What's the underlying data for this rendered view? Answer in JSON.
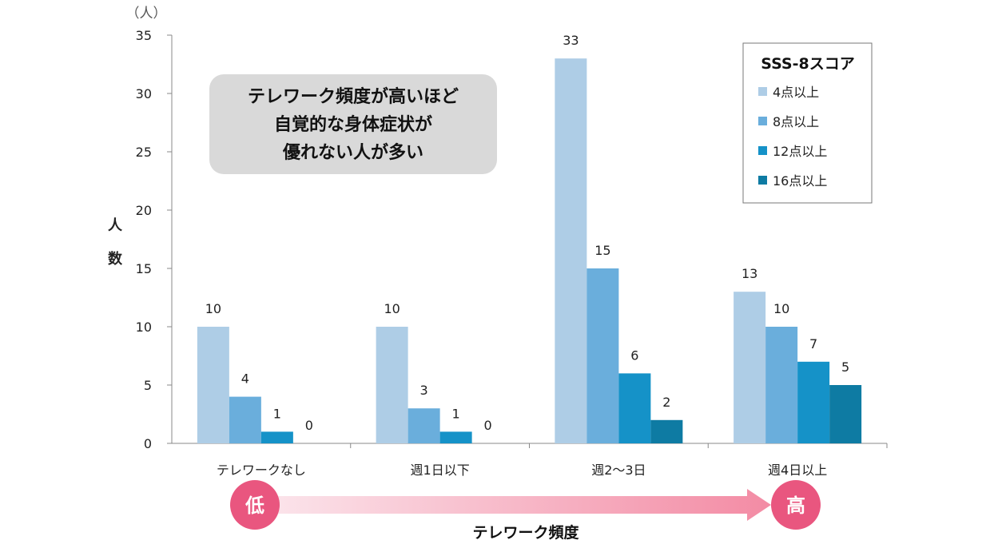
{
  "chart_data": {
    "type": "bar",
    "title": "",
    "categories": [
      "テレワークなし",
      "週1日以下",
      "週2～3日",
      "週4日以上"
    ],
    "series": [
      {
        "name": "4点以上",
        "values": [
          10,
          10,
          33,
          13
        ],
        "color": "#aecde6"
      },
      {
        "name": "8点以上",
        "values": [
          4,
          3,
          15,
          10
        ],
        "color": "#6aaedc"
      },
      {
        "name": "12点以上",
        "values": [
          1,
          1,
          6,
          7
        ],
        "color": "#1592c8"
      },
      {
        "name": "16点以上",
        "values": [
          0,
          0,
          2,
          5
        ],
        "color": "#0e7ba3"
      }
    ],
    "ylim": [
      0,
      35
    ],
    "yticks": [
      0,
      5,
      10,
      15,
      20,
      25,
      30,
      35
    ],
    "yunit": "（人）",
    "ylabel": "人数",
    "xlabel": "テレワーク頻度",
    "legend_title": "SSS-8スコア",
    "legend_position": "top-right",
    "grid": false,
    "annotation": [
      "テレワーク頻度が高いほど",
      "自覚的な身体症状が",
      "優れない人が多い"
    ],
    "arrow_low": "低",
    "arrow_high": "高",
    "accent_color": "#e9567f"
  }
}
